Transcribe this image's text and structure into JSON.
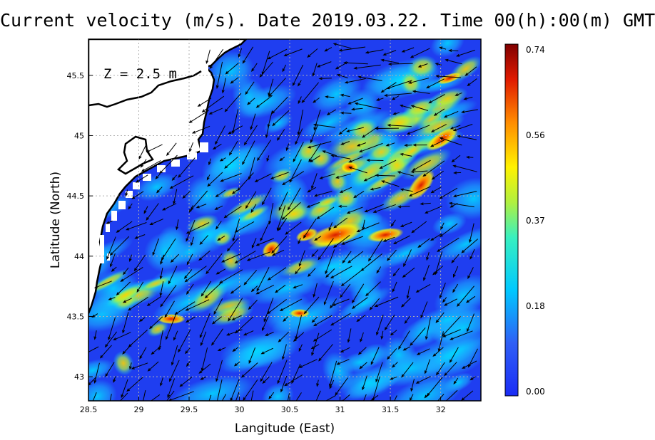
{
  "title": "Current velocity (m/s). Date 2019.03.22. Time 00(h):00(m) GMT",
  "depth_label": "Z = 2.5 m",
  "xlabel": "Langitude (East)",
  "ylabel": "Latitude (North)",
  "x_ticks": [
    "28.5",
    "29",
    "29.5",
    "30",
    "30.5",
    "31",
    "31.5",
    "32"
  ],
  "y_ticks": [
    "45.5",
    "45",
    "44.5",
    "44",
    "43.5",
    "43"
  ],
  "colorbar": {
    "ticks": [
      "0.74",
      "0.56",
      "0.37",
      "0.18",
      "0.00"
    ],
    "range": [
      0.0,
      0.74
    ],
    "colors": [
      "#1a2cf5",
      "#2f7ff5",
      "#00e0ff",
      "#7df07a",
      "#fff200",
      "#ff7a00",
      "#e01a00",
      "#800000"
    ]
  },
  "chart_data": {
    "type": "heatmap",
    "title": "Current velocity (m/s). Date 2019.03.22. Time 00(h):00(m) GMT",
    "xlabel": "Langitude (East)",
    "ylabel": "Latitude (North)",
    "xlim": [
      28.5,
      32.4
    ],
    "ylim": [
      42.8,
      45.8
    ],
    "value_range": [
      0.0,
      0.74
    ],
    "grid": true,
    "overlay": "current-vector-arrows"
  },
  "colors": {
    "land": "#ffffff",
    "coastline": "#000000",
    "grid": "#b0b0b0"
  }
}
